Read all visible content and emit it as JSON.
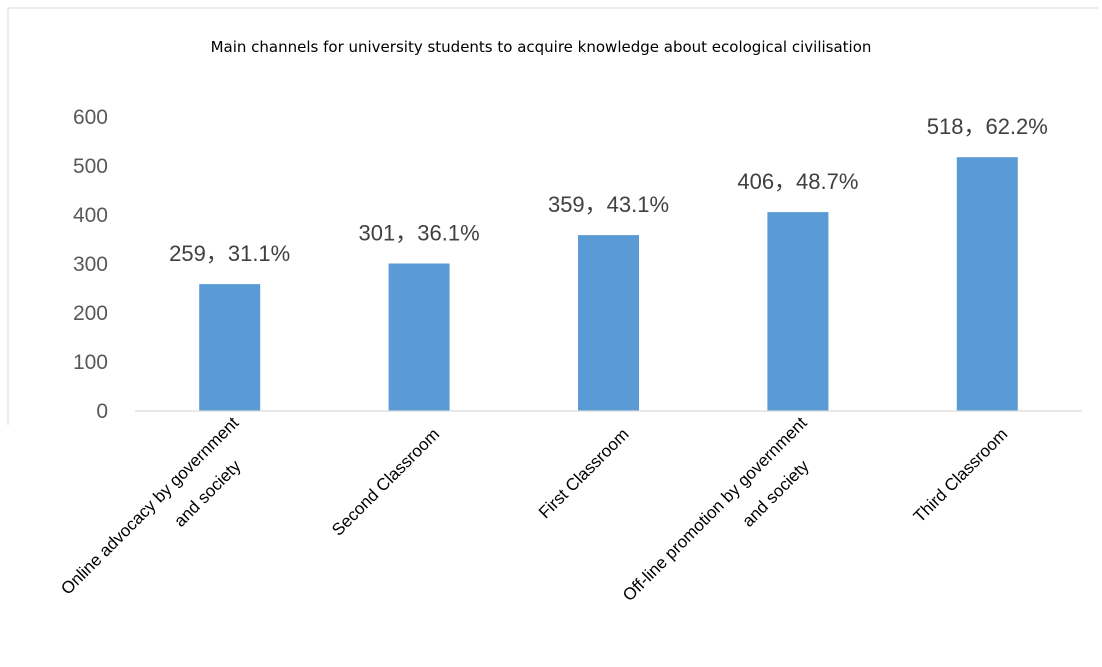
{
  "chart_data": {
    "type": "bar",
    "title": "Main channels for university students to acquire knowledge about ecological civilisation",
    "xlabel": "",
    "ylabel": "",
    "ylim": [
      0,
      600
    ],
    "yticks": [
      "0",
      "100",
      "200",
      "300",
      "400",
      "500",
      "600"
    ],
    "grid": false,
    "legend": "none",
    "bar_color": "#5b9bd5",
    "categories": [
      [
        "Online advocacy by government",
        "and society"
      ],
      [
        "Second Classroom"
      ],
      [
        "First Classroom"
      ],
      [
        "Off-line promotion by government",
        "and society"
      ],
      [
        "Third Classroom"
      ]
    ],
    "values": [
      259,
      301,
      359,
      406,
      518
    ],
    "data_labels": [
      "259，31.1%",
      "301，36.1%",
      "359，43.1%",
      "406，48.7%",
      "518，62.2%"
    ]
  }
}
